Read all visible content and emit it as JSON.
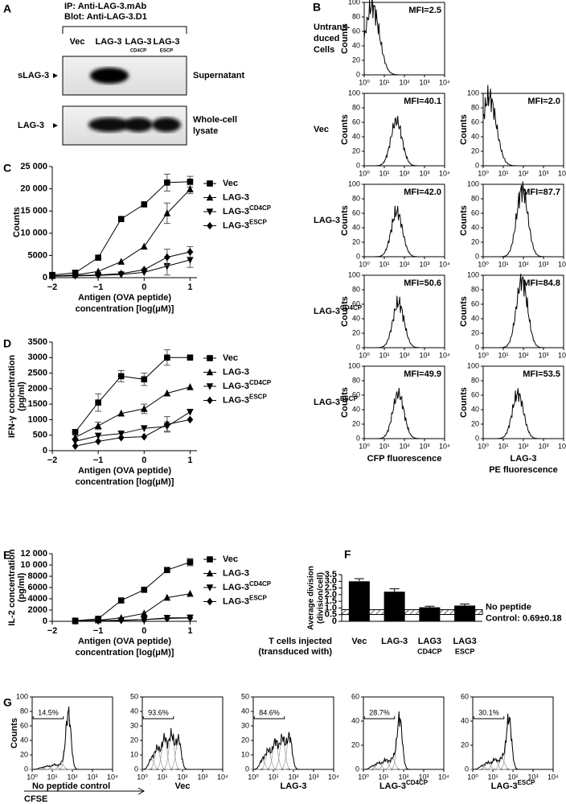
{
  "figure": {
    "A": {
      "letter": "A",
      "ip": "IP: Anti-LAG-3.mAb",
      "blot": "Blot: Anti-LAG-3.D1",
      "lanes": [
        {
          "name": "Vec"
        },
        {
          "name": "LAG-3"
        },
        {
          "name": "LAG-3",
          "sub": "CD4CP"
        },
        {
          "name": "LAG-3",
          "sub": "ESCP"
        }
      ],
      "rows": [
        {
          "label": "sLAG-3",
          "desc": [
            "Supernatant"
          ]
        },
        {
          "label": "LAG-3",
          "desc": [
            "Whole-cell",
            "lysate"
          ]
        }
      ]
    },
    "B": {
      "letter": "B",
      "ylabel": "Counts",
      "xscale": "log",
      "xlim": [
        1,
        10000
      ],
      "xticks": [
        {
          "value": 1,
          "label": "10⁰"
        },
        {
          "value": 10,
          "label": "10¹"
        },
        {
          "value": 100,
          "label": "10²"
        },
        {
          "value": 1000,
          "label": "10³"
        },
        {
          "value": 10000,
          "label": "10⁴"
        }
      ],
      "ylim": [
        0,
        100
      ],
      "yticks": [
        0,
        20,
        40,
        60,
        80,
        100
      ],
      "column_labels": [
        [
          "CFP fluorescence"
        ],
        [
          "LAG-3",
          "PE fluorescence"
        ]
      ],
      "rows": [
        {
          "label": [
            "Untrans-",
            "duced",
            "Cells"
          ],
          "mfi": [
            2.5,
            null
          ],
          "mfi_labels": [
            "MFI=2.5",
            null
          ]
        },
        {
          "label": [
            "Vec"
          ],
          "mfi": [
            40.1,
            2.0
          ],
          "mfi_labels": [
            "MFI=40.1",
            "MFI=2.0"
          ]
        },
        {
          "label": [
            "LAG-3"
          ],
          "mfi": [
            42.0,
            87.7
          ],
          "mfi_labels": [
            "MFI=42.0",
            "MFI=87.7"
          ]
        },
        {
          "label": [
            "LAG-3"
          ],
          "label_sup": "CD4CP",
          "mfi": [
            50.6,
            84.8
          ],
          "mfi_labels": [
            "MFI=50.6",
            "MFI=84.8"
          ]
        },
        {
          "label": [
            "LAG-3"
          ],
          "label_sup": "ESCP",
          "mfi": [
            49.9,
            53.5
          ],
          "mfi_labels": [
            "MFI=49.9",
            "MFI=53.5"
          ]
        }
      ]
    },
    "G": {
      "letter": "G",
      "ylabel": "Counts",
      "xlabel": "CFSE",
      "xscale": "log",
      "xlim": [
        1,
        10000
      ],
      "xticks": [
        {
          "value": 1,
          "label": "10⁰"
        },
        {
          "value": 10,
          "label": "10¹"
        },
        {
          "value": 100,
          "label": "10²"
        },
        {
          "value": 1000,
          "label": "10³"
        },
        {
          "value": 10000,
          "label": "10⁴"
        }
      ],
      "plots": [
        {
          "label": "No peptide control",
          "divided": 14.5,
          "divided_label": "14.5%",
          "ylim": [
            0,
            100
          ],
          "yticks": [
            0,
            20,
            40,
            60,
            80,
            100
          ]
        },
        {
          "label": "Vec",
          "divided": 93.6,
          "divided_label": "93.6%",
          "ylim": [
            0,
            50
          ],
          "yticks": [
            0,
            10,
            20,
            30,
            40,
            50
          ]
        },
        {
          "label": "LAG-3",
          "divided": 84.6,
          "divided_label": "84.6%",
          "ylim": [
            0,
            50
          ],
          "yticks": [
            0,
            10,
            20,
            30,
            40,
            50
          ]
        },
        {
          "label": "LAG-3",
          "label_sup": "CD4CP",
          "divided": 28.7,
          "divided_label": "28.7%",
          "ylim": [
            0,
            60
          ],
          "yticks": [
            0,
            20,
            40,
            60
          ]
        },
        {
          "label": "LAG-3",
          "label_sup": "ESCP",
          "divided": 30.1,
          "divided_label": "30.1%",
          "ylim": [
            0,
            60
          ],
          "yticks": [
            0,
            20,
            40,
            60
          ]
        }
      ]
    }
  },
  "chart_data": [
    {
      "panel": "C",
      "type": "line",
      "ylabel": [
        "Counts"
      ],
      "xlabel": [
        "Antigen (OVA peptide)",
        "concentration [log(μM)]"
      ],
      "x": [
        -2,
        -1.5,
        -1,
        -0.5,
        0,
        0.5,
        1
      ],
      "xlim": [
        -2,
        1.15
      ],
      "xticks": [
        {
          "value": -2,
          "label": "−2"
        },
        {
          "value": -1,
          "label": "−1"
        },
        0,
        1
      ],
      "ylim": [
        0,
        25000
      ],
      "yticks": [
        0,
        5000,
        {
          "value": 10000,
          "label": "10 000"
        },
        {
          "value": 15000,
          "label": "15 000"
        },
        {
          "value": 20000,
          "label": "20 000"
        },
        {
          "value": 25000,
          "label": "25 000"
        }
      ],
      "series": [
        {
          "name": "Vec",
          "marker": "square",
          "color": "#000000",
          "values": [
            600,
            1100,
            4500,
            13200,
            16500,
            21400,
            21600
          ],
          "errors": [
            null,
            null,
            null,
            null,
            null,
            1900,
            1200
          ]
        },
        {
          "name": "LAG-3",
          "marker": "triangle",
          "color": "#000000",
          "values": [
            400,
            600,
            1400,
            3600,
            7000,
            14500,
            19900
          ],
          "errors": [
            null,
            null,
            null,
            null,
            null,
            2300,
            1000
          ]
        },
        {
          "name": "LAG-3",
          "name_sup": "CD4CP",
          "marker": "triangle-down",
          "color": "#000000",
          "values": [
            300,
            400,
            500,
            700,
            1200,
            2600,
            4000
          ],
          "errors": [
            null,
            null,
            null,
            null,
            null,
            2000,
            1700
          ]
        },
        {
          "name": "LAG-3",
          "name_sup": "ESCP",
          "marker": "diamond",
          "color": "#000000",
          "values": [
            300,
            500,
            600,
            900,
            1800,
            4600,
            5800
          ],
          "errors": [
            null,
            null,
            null,
            null,
            null,
            1800,
            1200
          ]
        }
      ]
    },
    {
      "panel": "D",
      "type": "line",
      "ylabel": [
        "IFN-γ concentration",
        "(pg/ml)"
      ],
      "xlabel": [
        "Antigen (OVA peptide)",
        "concentration [log(μM)]"
      ],
      "x": [
        -1.5,
        -1,
        -0.5,
        0,
        0.5,
        1
      ],
      "xlim": [
        -2,
        1.15
      ],
      "xticks": [
        {
          "value": -2,
          "label": "−2"
        },
        {
          "value": -1,
          "label": "−1"
        },
        0,
        1
      ],
      "ylim": [
        0,
        3500
      ],
      "yticks": [
        0,
        500,
        1000,
        1500,
        2000,
        2500,
        3000,
        3500
      ],
      "series": [
        {
          "name": "Vec",
          "marker": "square",
          "color": "#000000",
          "values": [
            600,
            1550,
            2400,
            2300,
            3000,
            3000
          ],
          "errors": [
            null,
            280,
            180,
            200,
            250,
            null
          ]
        },
        {
          "name": "LAG-3",
          "marker": "triangle",
          "color": "#000000",
          "values": [
            430,
            800,
            1200,
            1350,
            1850,
            2050
          ],
          "errors": [
            null,
            120,
            null,
            150,
            null,
            null
          ]
        },
        {
          "name": "LAG-3",
          "name_sup": "CD4CP",
          "marker": "triangle-down",
          "color": "#000000",
          "values": [
            300,
            480,
            550,
            720,
            780,
            1250
          ],
          "errors": [
            null,
            null,
            null,
            null,
            150,
            null
          ]
        },
        {
          "name": "LAG-3",
          "name_sup": "ESCP",
          "marker": "diamond",
          "color": "#000000",
          "values": [
            150,
            300,
            420,
            450,
            850,
            1000
          ],
          "errors": [
            null,
            null,
            null,
            null,
            250,
            null
          ]
        }
      ]
    },
    {
      "panel": "E",
      "type": "line",
      "ylabel": [
        "IL-2 concentration",
        "(pg/ml)"
      ],
      "xlabel": [
        "Antigen (OVA peptide)",
        "concentration [log(μM)]"
      ],
      "x": [
        -1.5,
        -1,
        -0.5,
        0,
        0.5,
        1
      ],
      "xlim": [
        -2,
        1.15
      ],
      "xticks": [
        {
          "value": -2,
          "label": "−2"
        },
        {
          "value": -1,
          "label": "−1"
        },
        0,
        1
      ],
      "ylim": [
        0,
        12000
      ],
      "yticks": [
        0,
        2000,
        4000,
        6000,
        8000,
        {
          "value": 10000,
          "label": "10 000"
        },
        {
          "value": 12000,
          "label": "12 000"
        }
      ],
      "series": [
        {
          "name": "Vec",
          "marker": "square",
          "color": "#000000",
          "values": [
            100,
            450,
            3700,
            5600,
            9100,
            10500
          ],
          "errors": [
            null,
            null,
            null,
            null,
            null,
            650
          ]
        },
        {
          "name": "LAG-3",
          "marker": "triangle",
          "color": "#000000",
          "values": [
            50,
            200,
            600,
            1400,
            4200,
            4900
          ],
          "errors": [
            null,
            null,
            null,
            null,
            null,
            null
          ]
        },
        {
          "name": "LAG-3",
          "name_sup": "CD4CP",
          "marker": "triangle-down",
          "color": "#000000",
          "values": [
            50,
            100,
            150,
            300,
            600,
            650
          ],
          "errors": [
            null,
            null,
            null,
            null,
            null,
            null
          ]
        },
        {
          "name": "LAG-3",
          "name_sup": "ESCP",
          "marker": "diamond",
          "color": "#000000",
          "values": [
            50,
            100,
            200,
            300,
            500,
            600
          ],
          "errors": [
            null,
            null,
            null,
            null,
            null,
            null
          ]
        }
      ]
    },
    {
      "panel": "F",
      "type": "bar",
      "ylabel": [
        "Average division",
        "(division/cell)"
      ],
      "xlabel": [
        "T cells injected",
        "(transduced with)"
      ],
      "categories": [
        [
          "Vec"
        ],
        [
          "LAG-3"
        ],
        [
          "LAG3",
          "CD4CP"
        ],
        [
          "LAG3",
          "ESCP"
        ]
      ],
      "values": [
        3.0,
        2.22,
        1.05,
        1.18
      ],
      "errors": [
        0.2,
        0.22,
        0.08,
        0.12
      ],
      "color": "#000000",
      "ylim": [
        0,
        3.5
      ],
      "yticks": [
        0,
        0.5,
        {
          "value": 1,
          "label": "1.0"
        },
        1.5,
        {
          "value": 2,
          "label": "2.0"
        },
        2.5,
        {
          "value": 3,
          "label": "3.0"
        },
        3.5
      ],
      "reference": {
        "value": 0.69,
        "error": 0.18,
        "label": [
          "No peptide",
          "Control: 0.69±0.18"
        ]
      }
    }
  ]
}
